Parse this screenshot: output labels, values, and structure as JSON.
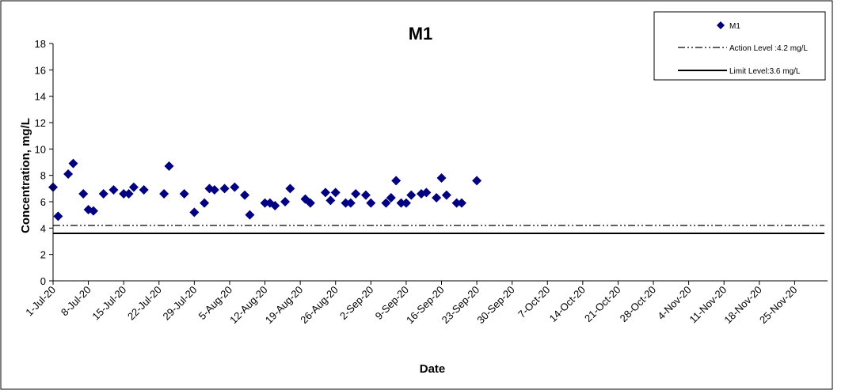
{
  "chart_data": {
    "type": "scatter",
    "title": "M1",
    "xlabel": "Date",
    "ylabel": "Concentration, mg/L",
    "ylim": [
      0,
      18
    ],
    "y_ticks": [
      "0",
      "2",
      "4",
      "6",
      "8",
      "10",
      "12",
      "14",
      "16",
      "18"
    ],
    "x_tick_labels": [
      "1-Jul-20",
      "8-Jul-20",
      "15-Jul-20",
      "22-Jul-20",
      "29-Jul-20",
      "5-Aug-20",
      "12-Aug-20",
      "19-Aug-20",
      "26-Aug-20",
      "2-Sep-20",
      "9-Sep-20",
      "16-Sep-20",
      "23-Sep-20",
      "30-Sep-20",
      "7-Oct-20",
      "14-Oct-20",
      "21-Oct-20",
      "28-Oct-20",
      "4-Nov-20",
      "11-Nov-20",
      "18-Nov-20",
      "25-Nov-20"
    ],
    "grid": false,
    "legend_position": "top-right",
    "series": [
      {
        "name": "M1",
        "marker": "diamond",
        "color": "#000080",
        "points": [
          {
            "x": "1-Jul-20",
            "y": 7.1
          },
          {
            "x": "2-Jul-20",
            "y": 4.9
          },
          {
            "x": "4-Jul-20",
            "y": 8.1
          },
          {
            "x": "5-Jul-20",
            "y": 8.9
          },
          {
            "x": "7-Jul-20",
            "y": 6.6
          },
          {
            "x": "8-Jul-20",
            "y": 5.4
          },
          {
            "x": "9-Jul-20",
            "y": 5.3
          },
          {
            "x": "11-Jul-20",
            "y": 6.6
          },
          {
            "x": "13-Jul-20",
            "y": 6.9
          },
          {
            "x": "15-Jul-20",
            "y": 6.6
          },
          {
            "x": "16-Jul-20",
            "y": 6.6
          },
          {
            "x": "17-Jul-20",
            "y": 7.1
          },
          {
            "x": "19-Jul-20",
            "y": 6.9
          },
          {
            "x": "23-Jul-20",
            "y": 6.6
          },
          {
            "x": "24-Jul-20",
            "y": 8.7
          },
          {
            "x": "27-Jul-20",
            "y": 6.6
          },
          {
            "x": "29-Jul-20",
            "y": 5.2
          },
          {
            "x": "31-Jul-20",
            "y": 5.9
          },
          {
            "x": "1-Aug-20",
            "y": 7.0
          },
          {
            "x": "2-Aug-20",
            "y": 6.9
          },
          {
            "x": "4-Aug-20",
            "y": 7.0
          },
          {
            "x": "6-Aug-20",
            "y": 7.1
          },
          {
            "x": "8-Aug-20",
            "y": 6.5
          },
          {
            "x": "9-Aug-20",
            "y": 5.0
          },
          {
            "x": "12-Aug-20",
            "y": 5.9
          },
          {
            "x": "13-Aug-20",
            "y": 5.9
          },
          {
            "x": "14-Aug-20",
            "y": 5.7
          },
          {
            "x": "16-Aug-20",
            "y": 6.0
          },
          {
            "x": "17-Aug-20",
            "y": 7.0
          },
          {
            "x": "20-Aug-20",
            "y": 6.2
          },
          {
            "x": "21-Aug-20",
            "y": 5.9
          },
          {
            "x": "24-Aug-20",
            "y": 6.7
          },
          {
            "x": "25-Aug-20",
            "y": 6.1
          },
          {
            "x": "26-Aug-20",
            "y": 6.7
          },
          {
            "x": "28-Aug-20",
            "y": 5.9
          },
          {
            "x": "29-Aug-20",
            "y": 5.9
          },
          {
            "x": "30-Aug-20",
            "y": 6.6
          },
          {
            "x": "1-Sep-20",
            "y": 6.5
          },
          {
            "x": "2-Sep-20",
            "y": 5.9
          },
          {
            "x": "5-Sep-20",
            "y": 5.9
          },
          {
            "x": "6-Sep-20",
            "y": 6.3
          },
          {
            "x": "7-Sep-20",
            "y": 7.6
          },
          {
            "x": "8-Sep-20",
            "y": 5.9
          },
          {
            "x": "9-Sep-20",
            "y": 5.9
          },
          {
            "x": "10-Sep-20",
            "y": 6.5
          },
          {
            "x": "12-Sep-20",
            "y": 6.6
          },
          {
            "x": "13-Sep-20",
            "y": 6.7
          },
          {
            "x": "15-Sep-20",
            "y": 6.3
          },
          {
            "x": "16-Sep-20",
            "y": 7.8
          },
          {
            "x": "17-Sep-20",
            "y": 6.5
          },
          {
            "x": "19-Sep-20",
            "y": 5.9
          },
          {
            "x": "20-Sep-20",
            "y": 5.9
          },
          {
            "x": "23-Sep-20",
            "y": 7.6
          }
        ]
      },
      {
        "name": "Action Level :4.2 mg/L",
        "type": "hline",
        "y": 4.2,
        "style": "dash-dot-dot",
        "color": "#000000"
      },
      {
        "name": "Limit Level:3.6 mg/L",
        "type": "hline",
        "y": 3.6,
        "style": "solid",
        "color": "#000000"
      }
    ]
  }
}
